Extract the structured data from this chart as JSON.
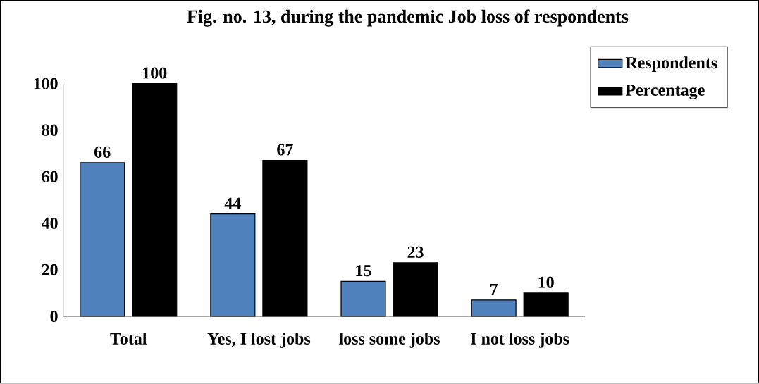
{
  "chart_data": {
    "type": "bar",
    "title": "Fig. no. 13, during the pandemic Job loss of respondents",
    "categories": [
      "Total",
      "Yes, I lost jobs",
      "loss some jobs",
      "I not loss jobs"
    ],
    "series": [
      {
        "name": "Respondents",
        "color": "#4f81bd",
        "values": [
          66,
          44,
          15,
          7
        ]
      },
      {
        "name": "Percentage",
        "color": "#000000",
        "values": [
          100,
          67,
          23,
          10
        ]
      }
    ],
    "ylim": [
      0,
      100
    ],
    "yticks": [
      0,
      20,
      40,
      60,
      80,
      100
    ],
    "data_labels": true,
    "legend": "top right",
    "grid": false
  }
}
